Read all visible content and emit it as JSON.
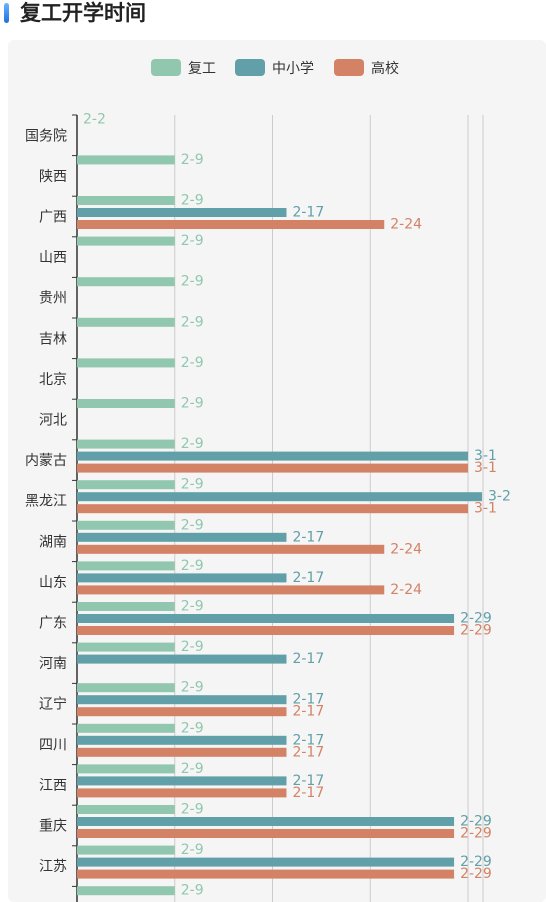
{
  "page_title": "复工开学时间",
  "colors": {
    "复工": "#91c7ae",
    "中小学": "#61a0a8",
    "高校": "#d48265"
  },
  "chart_data": {
    "type": "bar",
    "orientation": "horizontal",
    "categories": [
      "国务院",
      "陕西",
      "广西",
      "山西",
      "贵州",
      "吉林",
      "北京",
      "河北",
      "内蒙古",
      "黑龙江",
      "湖南",
      "山东",
      "广东",
      "河南",
      "辽宁",
      "四川",
      "江西",
      "重庆",
      "江苏",
      ""
    ],
    "series": [
      {
        "name": "复工",
        "values": [
          "2-2",
          "2-9",
          "2-9",
          "2-9",
          "2-9",
          "2-9",
          "2-9",
          "2-9",
          "2-9",
          "2-9",
          "2-9",
          "2-9",
          "2-9",
          "2-9",
          "2-9",
          "2-9",
          "2-9",
          "2-9",
          "2-9",
          "2-9"
        ]
      },
      {
        "name": "中小学",
        "values": [
          null,
          null,
          "2-17",
          null,
          null,
          null,
          null,
          null,
          "3-1",
          "3-2",
          "2-17",
          "2-17",
          "2-29",
          "2-17",
          "2-17",
          "2-17",
          "2-17",
          "2-29",
          "2-29",
          null
        ]
      },
      {
        "name": "高校",
        "values": [
          null,
          null,
          "2-24",
          null,
          null,
          null,
          null,
          null,
          "3-1",
          "3-1",
          "2-24",
          "2-24",
          "2-29",
          null,
          "2-17",
          "2-17",
          "2-17",
          "2-29",
          "2-29",
          null
        ]
      }
    ],
    "x_axis": {
      "type": "date",
      "start": "2-2",
      "end": "3-2"
    },
    "grid": true,
    "legend_position": "top-center"
  }
}
